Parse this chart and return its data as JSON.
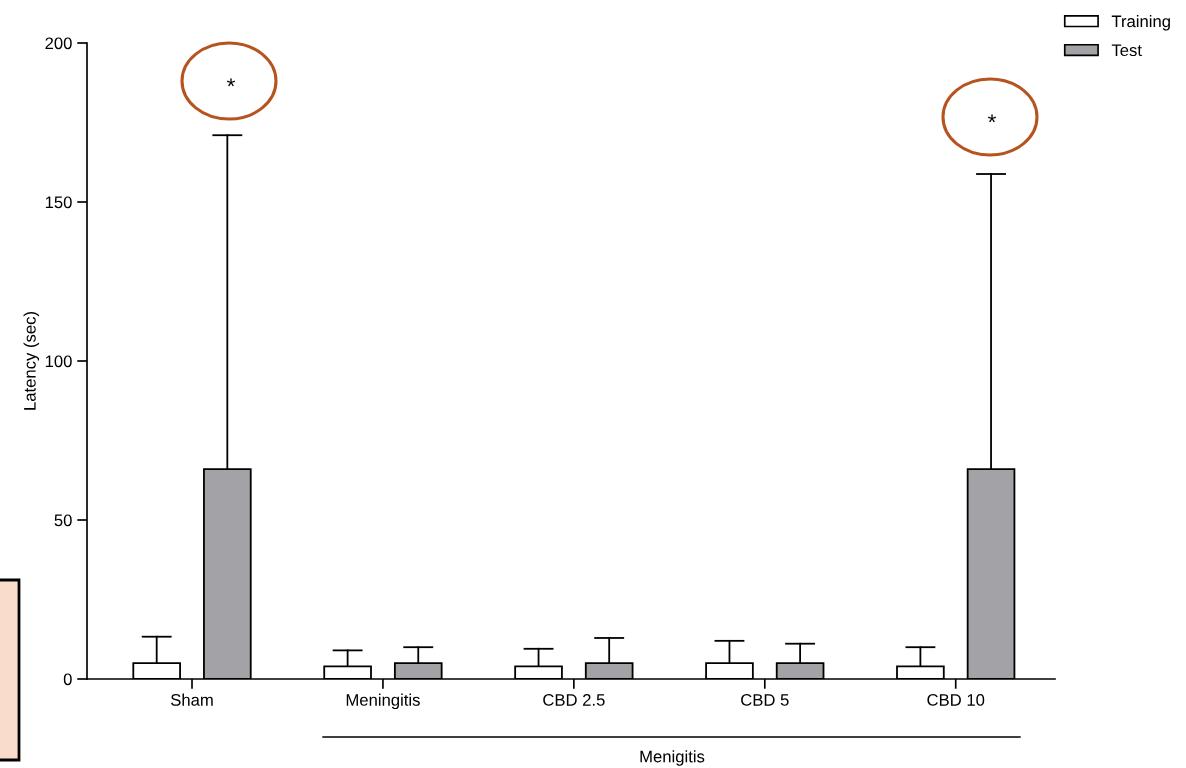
{
  "chart_data": {
    "type": "bar",
    "ylabel": "Latency (sec)",
    "categories": [
      "Sham",
      "Meningitis",
      "CBD 2.5",
      "CBD 5",
      "CBD 10"
    ],
    "series": [
      {
        "name": "Training",
        "color": "#ffffff",
        "values": [
          5,
          4,
          4,
          5,
          4
        ],
        "errors": [
          [
            5,
            13.3
          ],
          [
            4,
            9
          ],
          [
            4,
            9.5
          ],
          [
            5,
            12
          ],
          [
            4,
            10
          ]
        ]
      },
      {
        "name": "Test",
        "color": "#a3a2a7",
        "values": [
          66,
          5,
          5,
          5,
          66
        ],
        "errors": [
          [
            66,
            171
          ],
          [
            5,
            10
          ],
          [
            5,
            12.9
          ],
          [
            5,
            11.1
          ],
          [
            66,
            158.8
          ]
        ]
      }
    ],
    "ylim": [
      0,
      200
    ],
    "yticks": [
      0,
      50,
      100,
      150,
      200
    ],
    "grid": false,
    "legend": "top right",
    "annotations": [
      "*",
      "*",
      "Menigitis"
    ]
  }
}
